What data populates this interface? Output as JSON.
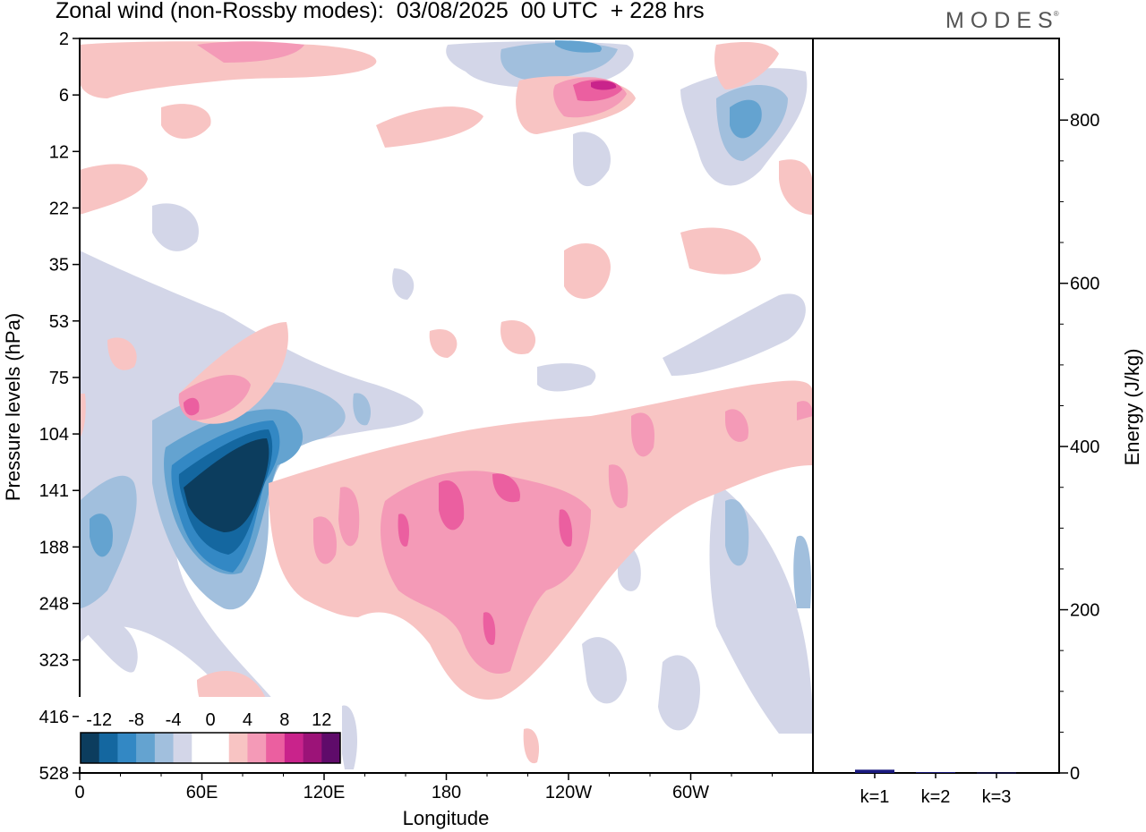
{
  "title": "Zonal wind (non-Rossby modes):  03/08/2025  00 UTC  + 228 hrs",
  "brand": "MODES",
  "brand_mark": "®",
  "chart_data": [
    {
      "type": "heatmap",
      "title": "Zonal wind (non-Rossby modes):  03/08/2025  00 UTC  + 228 hrs",
      "xlabel": "Longitude",
      "ylabel": "Pressure levels (hPa)",
      "x_ticks": [
        "0",
        "60E",
        "120E",
        "180",
        "120W",
        "60W"
      ],
      "x_tick_degrees_east": [
        0,
        60,
        120,
        180,
        240,
        300
      ],
      "x_range_degrees_east": [
        0,
        360
      ],
      "y_ticks": [
        "2",
        "6",
        "12",
        "22",
        "35",
        "53",
        "75",
        "104",
        "141",
        "188",
        "248",
        "323",
        "416",
        "528"
      ],
      "colorbar": {
        "labels": [
          "-12",
          "-8",
          "-4",
          "0",
          "4",
          "8",
          "12"
        ],
        "colors": [
          "#0c3d5e",
          "#1467a0",
          "#3388c4",
          "#64a3d0",
          "#a1bfdd",
          "#d3d6e8",
          "#ffffff",
          "#ffffff",
          "#f8c4c3",
          "#f49ab7",
          "#eb5fa0",
          "#c9238b",
          "#9c1378",
          "#5f0b6a"
        ]
      },
      "features": [
        {
          "name": "strong easterly core",
          "lon": 65,
          "level": "141-188",
          "value": -14
        },
        {
          "name": "westerly band",
          "lon": "150-250",
          "level": "104-248",
          "value": 6
        },
        {
          "name": "upper westerly maximum",
          "lon": 243,
          "level": "6",
          "value": 8
        },
        {
          "name": "upper easterly maximum",
          "lon": 330,
          "level": "6-12",
          "value": -8
        }
      ]
    },
    {
      "type": "bar",
      "categories": [
        "k=1",
        "k=2",
        "k=3"
      ],
      "values": [
        4,
        1,
        0.5
      ],
      "ylabel": "Energy (J/kg)",
      "ylim": [
        0,
        900
      ],
      "y_ticks": [
        "0",
        "200",
        "400",
        "600",
        "800"
      ],
      "bar_color": "#1a1a80"
    }
  ]
}
